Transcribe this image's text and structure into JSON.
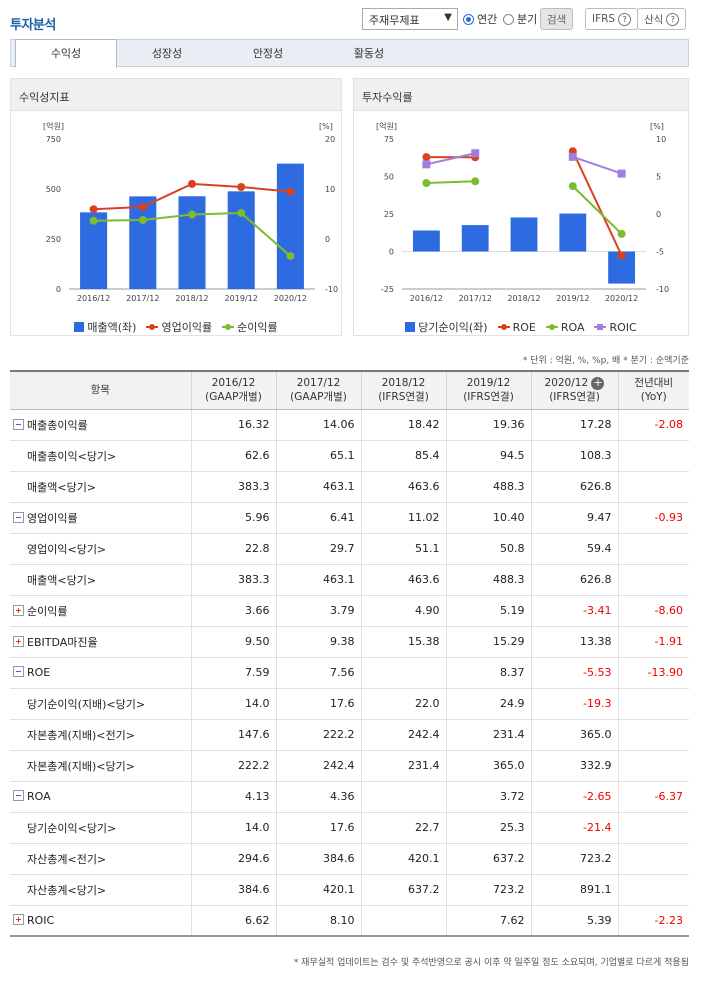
{
  "header": {
    "title": "투자분석",
    "statement_select": "주재무제표",
    "period_annual": "연간",
    "period_quarter": "분기",
    "search_label": "검색",
    "ifrs_label": "IFRS",
    "formula_label": "산식"
  },
  "tabs": [
    "수익성",
    "성장성",
    "안정성",
    "활동성"
  ],
  "left_panel": {
    "title": "수익성지표",
    "unit_left": "[억원]",
    "unit_right": "[%]",
    "legend": [
      "매출액(좌)",
      "영업이익률",
      "순이익률"
    ]
  },
  "right_panel": {
    "title": "투자수익률",
    "unit_left": "[억원]",
    "unit_right": "[%]",
    "legend": [
      "당기순이익(좌)",
      "ROE",
      "ROA",
      "ROIC"
    ]
  },
  "chart_data": [
    {
      "type": "bar",
      "title": "수익성지표",
      "categories": [
        "2016/12",
        "2017/12",
        "2018/12",
        "2019/12",
        "2020/12"
      ],
      "y_left_ticks": [
        0,
        250,
        500,
        750
      ],
      "y_right_ticks": [
        -10,
        0,
        10,
        20
      ],
      "ylim_left": [
        0,
        750
      ],
      "ylim_right": [
        -10,
        20
      ],
      "series": [
        {
          "name": "매출액(좌)",
          "type": "bar",
          "axis": "left",
          "color": "#2e6be0",
          "values": [
            383.3,
            463.1,
            463.6,
            488.3,
            626.8
          ]
        },
        {
          "name": "영업이익률",
          "type": "line",
          "axis": "right",
          "color": "#d9421f",
          "values": [
            5.96,
            6.41,
            11.02,
            10.4,
            9.47
          ]
        },
        {
          "name": "순이익률",
          "type": "line",
          "axis": "right",
          "color": "#7dbb2f",
          "values": [
            3.66,
            3.79,
            4.9,
            5.19,
            -3.41
          ]
        }
      ]
    },
    {
      "type": "bar",
      "title": "투자수익률",
      "categories": [
        "2016/12",
        "2017/12",
        "2018/12",
        "2019/12",
        "2020/12"
      ],
      "y_left_ticks": [
        -25,
        0,
        25,
        50,
        75
      ],
      "y_right_ticks": [
        -10,
        -5,
        0,
        5,
        10
      ],
      "ylim_left": [
        -25,
        75
      ],
      "ylim_right": [
        -10,
        10
      ],
      "series": [
        {
          "name": "당기순이익(좌)",
          "type": "bar",
          "axis": "left",
          "color": "#2e6be0",
          "values": [
            14.0,
            17.6,
            22.7,
            25.3,
            -21.4
          ]
        },
        {
          "name": "ROE",
          "type": "line",
          "axis": "right",
          "color": "#d9421f",
          "values": [
            7.59,
            7.56,
            null,
            8.37,
            -5.53
          ]
        },
        {
          "name": "ROA",
          "type": "line",
          "axis": "right",
          "color": "#7dbb2f",
          "values": [
            4.13,
            4.36,
            null,
            3.72,
            -2.65
          ]
        },
        {
          "name": "ROIC",
          "type": "line",
          "axis": "right",
          "color": "#a07ee0",
          "values": [
            6.62,
            8.1,
            null,
            7.62,
            5.39
          ]
        }
      ]
    }
  ],
  "unit_note": "* 단위 : 억원, %, %p, 배   * 분기 : 순액기준",
  "table": {
    "header_item": "항목",
    "columns": [
      {
        "year": "2016/12",
        "basis": "(GAAP개별)"
      },
      {
        "year": "2017/12",
        "basis": "(GAAP개별)"
      },
      {
        "year": "2018/12",
        "basis": "(IFRS연결)"
      },
      {
        "year": "2019/12",
        "basis": "(IFRS연결)"
      },
      {
        "year": "2020/12",
        "basis": "(IFRS연결)"
      }
    ],
    "yoy_label": "전년대비",
    "yoy_sub": "(YoY)",
    "rows": [
      {
        "label": "매출총이익률",
        "toggle": "minus",
        "vals": [
          "16.32",
          "14.06",
          "18.42",
          "19.36",
          "17.28"
        ],
        "yoy": "-2.08"
      },
      {
        "label": "매출총이익<당기>",
        "toggle": "",
        "vals": [
          "62.6",
          "65.1",
          "85.4",
          "94.5",
          "108.3"
        ],
        "yoy": ""
      },
      {
        "label": "매출액<당기>",
        "toggle": "",
        "vals": [
          "383.3",
          "463.1",
          "463.6",
          "488.3",
          "626.8"
        ],
        "yoy": ""
      },
      {
        "label": "영업이익률",
        "toggle": "minus",
        "vals": [
          "5.96",
          "6.41",
          "11.02",
          "10.40",
          "9.47"
        ],
        "yoy": "-0.93"
      },
      {
        "label": "영업이익<당기>",
        "toggle": "",
        "vals": [
          "22.8",
          "29.7",
          "51.1",
          "50.8",
          "59.4"
        ],
        "yoy": ""
      },
      {
        "label": "매출액<당기>",
        "toggle": "",
        "vals": [
          "383.3",
          "463.1",
          "463.6",
          "488.3",
          "626.8"
        ],
        "yoy": ""
      },
      {
        "label": "순이익률",
        "toggle": "plus",
        "vals": [
          "3.66",
          "3.79",
          "4.90",
          "5.19",
          "-3.41"
        ],
        "yoy": "-8.60"
      },
      {
        "label": "EBITDA마진율",
        "toggle": "plus",
        "vals": [
          "9.50",
          "9.38",
          "15.38",
          "15.29",
          "13.38"
        ],
        "yoy": "-1.91"
      },
      {
        "label": "ROE",
        "toggle": "minus",
        "vals": [
          "7.59",
          "7.56",
          "",
          "8.37",
          "-5.53"
        ],
        "yoy": "-13.90"
      },
      {
        "label": "당기순이익(지배)<당기>",
        "toggle": "",
        "vals": [
          "14.0",
          "17.6",
          "22.0",
          "24.9",
          "-19.3"
        ],
        "yoy": ""
      },
      {
        "label": "자본총계(지배)<전기>",
        "toggle": "",
        "vals": [
          "147.6",
          "222.2",
          "242.4",
          "231.4",
          "365.0"
        ],
        "yoy": ""
      },
      {
        "label": "자본총계(지배)<당기>",
        "toggle": "",
        "vals": [
          "222.2",
          "242.4",
          "231.4",
          "365.0",
          "332.9"
        ],
        "yoy": ""
      },
      {
        "label": "ROA",
        "toggle": "minus",
        "vals": [
          "4.13",
          "4.36",
          "",
          "3.72",
          "-2.65"
        ],
        "yoy": "-6.37"
      },
      {
        "label": "당기순이익<당기>",
        "toggle": "",
        "vals": [
          "14.0",
          "17.6",
          "22.7",
          "25.3",
          "-21.4"
        ],
        "yoy": ""
      },
      {
        "label": "자산총계<전기>",
        "toggle": "",
        "vals": [
          "294.6",
          "384.6",
          "420.1",
          "637.2",
          "723.2"
        ],
        "yoy": ""
      },
      {
        "label": "자산총계<당기>",
        "toggle": "",
        "vals": [
          "384.6",
          "420.1",
          "637.2",
          "723.2",
          "891.1"
        ],
        "yoy": ""
      },
      {
        "label": "ROIC",
        "toggle": "plus",
        "vals": [
          "6.62",
          "8.10",
          "",
          "7.62",
          "5.39"
        ],
        "yoy": "-2.23"
      }
    ]
  },
  "footnote": "* 재무실적 업데이트는 검수 및 주석반영으로 공시 이후 약 일주일 정도 소요되며, 기업별로 다르게 적용됨"
}
